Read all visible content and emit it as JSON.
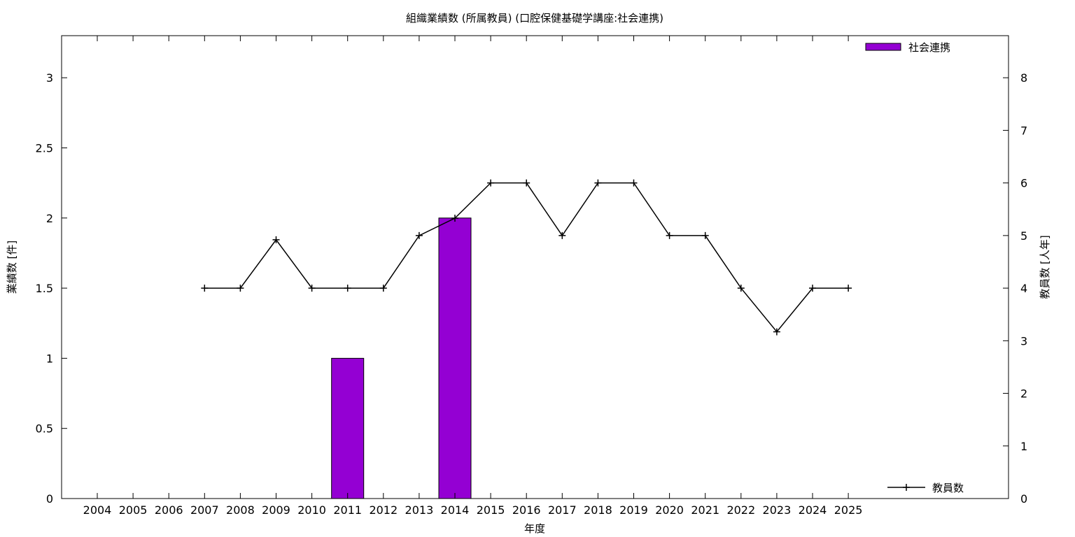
{
  "chart_data": {
    "type": "bar",
    "title": "組織業績数 (所属教員) (口腔保健基礎学講座:社会連携)",
    "xlabel": "年度",
    "ylabel": "業績数 [件]",
    "y2label": "教員数 [人年]",
    "categories": [
      "2004",
      "2005",
      "2006",
      "2007",
      "2008",
      "2009",
      "2010",
      "2011",
      "2012",
      "2013",
      "2014",
      "2015",
      "2016",
      "2017",
      "2018",
      "2019",
      "2020",
      "2021",
      "2022",
      "2023",
      "2024",
      "2025"
    ],
    "ylim": [
      0,
      3.3
    ],
    "y2lim": [
      0,
      8.8
    ],
    "yticks": [
      "0",
      "0.5",
      "1",
      "1.5",
      "2",
      "2.5",
      "3"
    ],
    "y2ticks": [
      "0",
      "1",
      "2",
      "3",
      "4",
      "5",
      "6",
      "7",
      "8"
    ],
    "grid": false,
    "series": [
      {
        "name": "社会連携",
        "type": "bar",
        "axis": "left",
        "color": "#9400d3",
        "legend_position": "top-right",
        "values": [
          null,
          null,
          null,
          null,
          null,
          null,
          null,
          1,
          null,
          null,
          2,
          null,
          null,
          null,
          null,
          null,
          null,
          null,
          null,
          null,
          null,
          null
        ]
      },
      {
        "name": "教員数",
        "type": "line",
        "axis": "right",
        "color": "#000000",
        "marker": "plus",
        "legend_position": "bottom-right",
        "values": [
          null,
          null,
          null,
          4,
          4,
          4.92,
          4,
          4,
          4,
          5,
          5.33,
          6,
          6,
          5,
          6,
          6,
          5,
          5,
          4,
          3.17,
          4,
          4
        ]
      }
    ]
  }
}
